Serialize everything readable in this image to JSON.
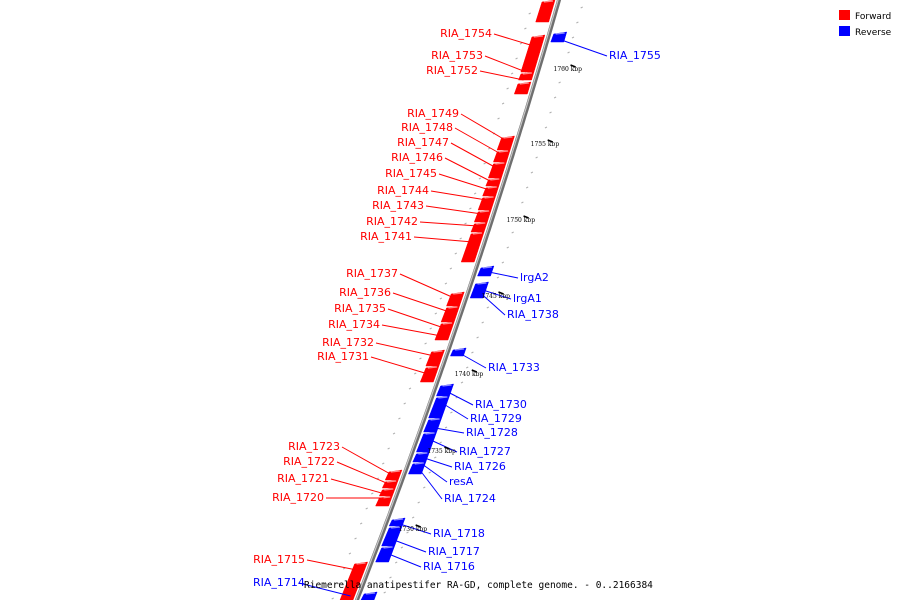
{
  "title": "Riemerella anatipestifer RA-GD, complete genome. - 0..2166384",
  "legend": [
    {
      "label": "Forward",
      "color": "#ff0000"
    },
    {
      "label": "Reverse",
      "color": "#0000ff"
    }
  ],
  "colors": {
    "forward": "#ff0000",
    "reverse": "#0000ff",
    "backbone": "#808080"
  },
  "kbp_markers": [
    "1760 kbp",
    "1755 kbp",
    "1750 kbp",
    "1745 kbp",
    "1740 kbp",
    "1735 kbp",
    "1730 kbp"
  ],
  "forward_labels": [
    "RIA_1754",
    "RIA_1753",
    "RIA_1752",
    "RIA_1749",
    "RIA_1748",
    "RIA_1747",
    "RIA_1746",
    "RIA_1745",
    "RIA_1744",
    "RIA_1743",
    "RIA_1742",
    "RIA_1741",
    "RIA_1737",
    "RIA_1736",
    "RIA_1735",
    "RIA_1734",
    "RIA_1732",
    "RIA_1731",
    "RIA_1723",
    "RIA_1722",
    "RIA_1721",
    "RIA_1720",
    "RIA_1715"
  ],
  "reverse_labels": [
    "RIA_1755",
    "lrgA2",
    "lrgA1",
    "RIA_1738",
    "RIA_1733",
    "RIA_1730",
    "RIA_1729",
    "RIA_1728",
    "RIA_1727",
    "RIA_1726",
    "resA",
    "RIA_1724",
    "RIA_1718",
    "RIA_1717",
    "RIA_1716",
    "RIA_1714"
  ]
}
